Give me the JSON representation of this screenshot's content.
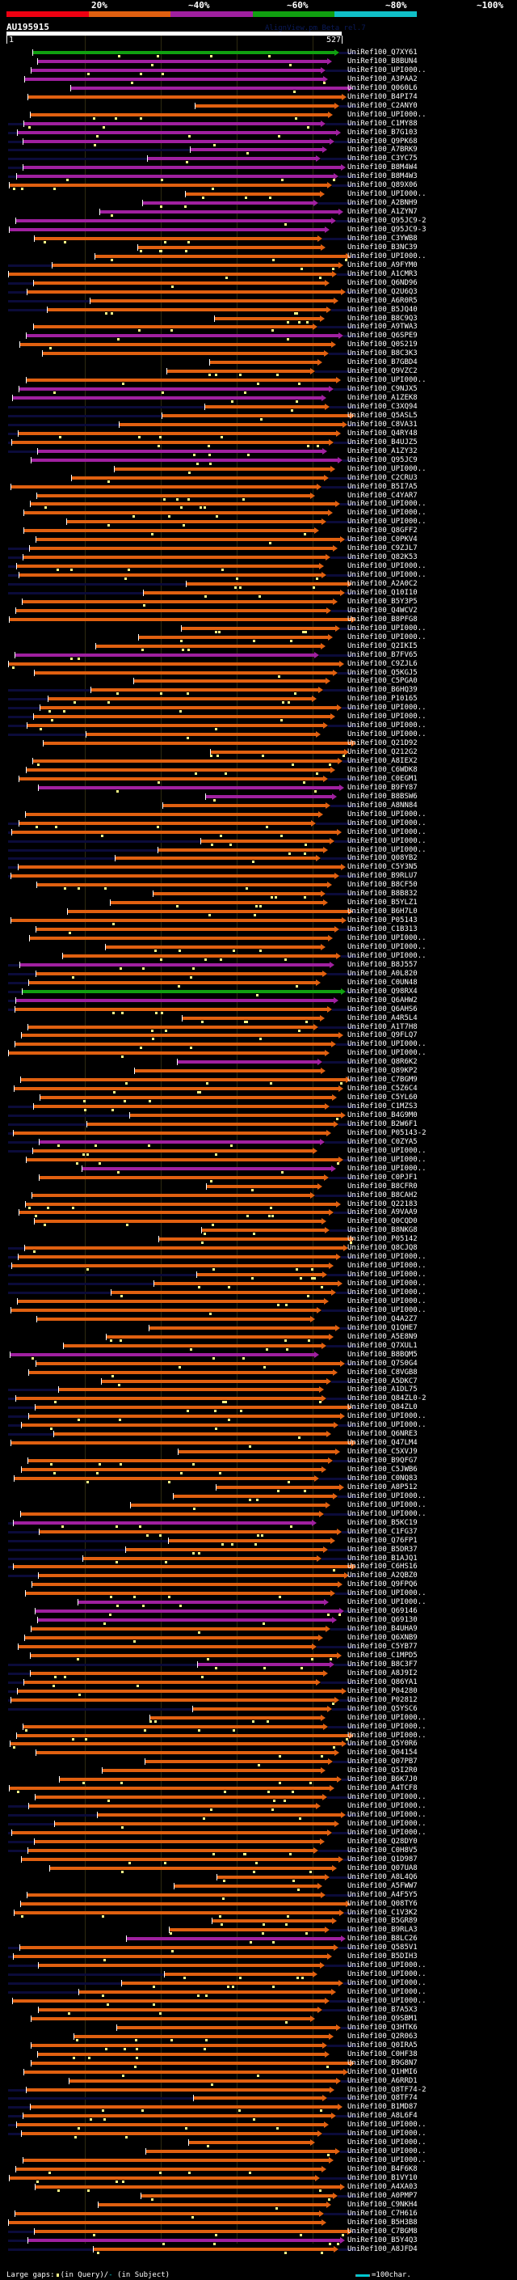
{
  "coverage_legend": {
    "labels": [
      "20%",
      "~40%",
      "~60%",
      "~80%",
      "~100%"
    ],
    "colors": [
      "#ee0011",
      "#e06010",
      "#a020a0",
      "#10a010",
      "#10c0c8"
    ]
  },
  "query": {
    "name": "AU195915",
    "start": "1",
    "end": "527",
    "length": 527
  },
  "watermark": "AlignView.pm Beta rel.7",
  "hit_colors": {
    "orange": "#e06010",
    "purple": "#a020a0",
    "green": "#10a010"
  },
  "hits": [
    {
      "label": "UniRef100_Q7XY61",
      "c": "green"
    },
    {
      "label": "UniRef100_B8BUN4",
      "c": "purple"
    },
    {
      "label": "UniRef100_UPI000..",
      "c": "purple"
    },
    {
      "label": "UniRef100_A3PAA2",
      "c": "purple"
    },
    {
      "label": "UniRef100_Q060L6",
      "c": "purple"
    },
    {
      "label": "UniRef100_B4PI74",
      "c": "orange"
    },
    {
      "label": "UniRef100_C2ANY0",
      "c": "orange"
    },
    {
      "label": "UniRef100_UPI000..",
      "c": "orange"
    },
    {
      "label": "UniRef100_C1MY88",
      "c": "purple"
    },
    {
      "label": "UniRef100_B7G103",
      "c": "purple"
    },
    {
      "label": "UniRef100_Q9PK68",
      "c": "purple"
    },
    {
      "label": "UniRef100_A7BRK9",
      "c": "purple"
    },
    {
      "label": "UniRef100_C3YC75",
      "c": "purple"
    },
    {
      "label": "UniRef100_B8M4W4",
      "c": "purple"
    },
    {
      "label": "UniRef100_B8M4W3",
      "c": "purple"
    },
    {
      "label": "UniRef100_Q89X06",
      "c": "orange"
    },
    {
      "label": "UniRef100_UPI000..",
      "c": "orange"
    },
    {
      "label": "UniRef100_A2BNH9",
      "c": "purple"
    },
    {
      "label": "UniRef100_A1ZYN7",
      "c": "purple"
    },
    {
      "label": "UniRef100_Q95JC9-2",
      "c": "purple"
    },
    {
      "label": "UniRef100_Q95JC9-3",
      "c": "purple"
    },
    {
      "label": "UniRef100_C3YWB8",
      "c": "orange"
    },
    {
      "label": "UniRef100_B3NC39",
      "c": "orange"
    },
    {
      "label": "UniRef100_UPI000..",
      "c": "orange"
    },
    {
      "label": "UniRef100_A9FYM0",
      "c": "orange"
    },
    {
      "label": "UniRef100_A1CMR3",
      "c": "orange"
    },
    {
      "label": "UniRef100_Q6ND96",
      "c": "orange"
    },
    {
      "label": "UniRef100_Q2U6Q3",
      "c": "orange"
    },
    {
      "label": "UniRef100_A6R0R5",
      "c": "orange"
    },
    {
      "label": "UniRef100_B5JQ40",
      "c": "orange"
    },
    {
      "label": "UniRef100_B8C9Q3",
      "c": "orange"
    },
    {
      "label": "UniRef100_A9TWA3",
      "c": "orange"
    },
    {
      "label": "UniRef100_Q6SPE9",
      "c": "purple"
    },
    {
      "label": "UniRef100_Q0S219",
      "c": "orange"
    },
    {
      "label": "UniRef100_B8C3K3",
      "c": "orange"
    },
    {
      "label": "UniRef100_B7GBD4",
      "c": "orange"
    },
    {
      "label": "UniRef100_Q9VZC2",
      "c": "orange"
    },
    {
      "label": "UniRef100_UPI000..",
      "c": "orange"
    },
    {
      "label": "UniRef100_C9NJX5",
      "c": "purple"
    },
    {
      "label": "UniRef100_A1ZEK8",
      "c": "purple"
    },
    {
      "label": "UniRef100_C3XQ94",
      "c": "orange"
    },
    {
      "label": "UniRef100_Q5ASL5",
      "c": "orange"
    },
    {
      "label": "UniRef100_C8VA31",
      "c": "orange"
    },
    {
      "label": "UniRef100_Q4RY48",
      "c": "orange"
    },
    {
      "label": "UniRef100_B4UJZ5",
      "c": "orange"
    },
    {
      "label": "UniRef100_A1ZY32",
      "c": "purple"
    },
    {
      "label": "UniRef100_Q95JC9",
      "c": "purple"
    },
    {
      "label": "UniRef100_UPI000..",
      "c": "orange"
    },
    {
      "label": "UniRef100_C2CRU3",
      "c": "orange"
    },
    {
      "label": "UniRef100_B5I7A5",
      "c": "orange"
    },
    {
      "label": "UniRef100_C4YAR7",
      "c": "orange"
    },
    {
      "label": "UniRef100_UPI000..",
      "c": "orange"
    },
    {
      "label": "UniRef100_UPI000..",
      "c": "orange"
    },
    {
      "label": "UniRef100_UPI000..",
      "c": "orange"
    },
    {
      "label": "UniRef100_Q8GFF2",
      "c": "orange"
    },
    {
      "label": "UniRef100_C0PKV4",
      "c": "orange"
    },
    {
      "label": "UniRef100_C9ZJL7",
      "c": "orange"
    },
    {
      "label": "UniRef100_Q82K53",
      "c": "orange"
    },
    {
      "label": "UniRef100_UPI000..",
      "c": "orange"
    },
    {
      "label": "UniRef100_UPI000..",
      "c": "orange"
    },
    {
      "label": "UniRef100_A2A0C2",
      "c": "orange"
    },
    {
      "label": "UniRef100_Q10I10",
      "c": "orange"
    },
    {
      "label": "UniRef100_B5Y3P5",
      "c": "orange"
    },
    {
      "label": "UniRef100_Q4WCV2",
      "c": "orange"
    },
    {
      "label": "UniRef100_B8PFG8",
      "c": "orange"
    },
    {
      "label": "UniRef100_UPI000..",
      "c": "orange"
    },
    {
      "label": "UniRef100_UPI000..",
      "c": "orange"
    },
    {
      "label": "UniRef100_Q2IKI5",
      "c": "orange"
    },
    {
      "label": "UniRef100_B7FV65",
      "c": "purple"
    },
    {
      "label": "UniRef100_C9ZJL6",
      "c": "orange"
    },
    {
      "label": "UniRef100_Q5KGJ5",
      "c": "orange"
    },
    {
      "label": "UniRef100_C5PGA0",
      "c": "orange"
    },
    {
      "label": "UniRef100_B6HQ39",
      "c": "orange"
    },
    {
      "label": "UniRef100_P10165",
      "c": "orange"
    },
    {
      "label": "UniRef100_UPI000..",
      "c": "orange"
    },
    {
      "label": "UniRef100_UPI000..",
      "c": "orange"
    },
    {
      "label": "UniRef100_UPI000..",
      "c": "orange"
    },
    {
      "label": "UniRef100_UPI000..",
      "c": "orange"
    },
    {
      "label": "UniRef100_Q21D92",
      "c": "orange"
    },
    {
      "label": "UniRef100_Q212G2",
      "c": "orange"
    },
    {
      "label": "UniRef100_A8IEX2",
      "c": "orange"
    },
    {
      "label": "UniRef100_C6WDK8",
      "c": "orange"
    },
    {
      "label": "UniRef100_C0EGM1",
      "c": "orange"
    },
    {
      "label": "UniRef100_B9FY87",
      "c": "purple"
    },
    {
      "label": "UniRef100_B8BSW6",
      "c": "purple"
    },
    {
      "label": "UniRef100_A8NN84",
      "c": "orange"
    },
    {
      "label": "UniRef100_UPI000..",
      "c": "orange"
    },
    {
      "label": "UniRef100_UPI000..",
      "c": "orange"
    },
    {
      "label": "UniRef100_UPI000..",
      "c": "orange"
    },
    {
      "label": "UniRef100_UPI000..",
      "c": "orange"
    },
    {
      "label": "UniRef100_UPI000..",
      "c": "orange"
    },
    {
      "label": "UniRef100_Q08YB2",
      "c": "orange"
    },
    {
      "label": "UniRef100_C5Y3N5",
      "c": "orange"
    },
    {
      "label": "UniRef100_B9RLU7",
      "c": "orange"
    },
    {
      "label": "UniRef100_B8CF50",
      "c": "orange"
    },
    {
      "label": "UniRef100_B8B832",
      "c": "orange"
    },
    {
      "label": "UniRef100_B5YLZ1",
      "c": "orange"
    },
    {
      "label": "UniRef100_B6H7L0",
      "c": "orange"
    },
    {
      "label": "UniRef100_P05143",
      "c": "orange"
    },
    {
      "label": "UniRef100_C1B313",
      "c": "orange"
    },
    {
      "label": "UniRef100_UPI000..",
      "c": "orange"
    },
    {
      "label": "UniRef100_UPI000..",
      "c": "orange"
    },
    {
      "label": "UniRef100_UPI000..",
      "c": "orange"
    },
    {
      "label": "UniRef100_B8J557",
      "c": "purple"
    },
    {
      "label": "UniRef100_A0L820",
      "c": "orange"
    },
    {
      "label": "UniRef100_C0UN48",
      "c": "orange"
    },
    {
      "label": "UniRef100_Q98RX4",
      "c": "green"
    },
    {
      "label": "UniRef100_Q6AHW2",
      "c": "purple"
    },
    {
      "label": "UniRef100_Q6AHS6",
      "c": "orange"
    },
    {
      "label": "UniRef100_A4R5L4",
      "c": "orange"
    },
    {
      "label": "UniRef100_A1T7H8",
      "c": "orange"
    },
    {
      "label": "UniRef100_Q9FLQ7",
      "c": "orange"
    },
    {
      "label": "UniRef100_UPI000..",
      "c": "orange"
    },
    {
      "label": "UniRef100_UPI000..",
      "c": "orange"
    },
    {
      "label": "UniRef100_Q8R6K2",
      "c": "purple"
    },
    {
      "label": "UniRef100_Q89KP2",
      "c": "orange"
    },
    {
      "label": "UniRef100_C7BGM9",
      "c": "orange"
    },
    {
      "label": "UniRef100_C5Z6C4",
      "c": "orange"
    },
    {
      "label": "UniRef100_C5YL60",
      "c": "orange"
    },
    {
      "label": "UniRef100_C1MZS3",
      "c": "orange"
    },
    {
      "label": "UniRef100_B4G9M0",
      "c": "orange"
    },
    {
      "label": "UniRef100_B2W6F1",
      "c": "orange"
    },
    {
      "label": "UniRef100_P05143-2",
      "c": "orange"
    },
    {
      "label": "UniRef100_C0ZYA5",
      "c": "purple"
    },
    {
      "label": "UniRef100_UPI000..",
      "c": "orange"
    },
    {
      "label": "UniRef100_UPI000..",
      "c": "orange"
    },
    {
      "label": "UniRef100_UPI000..",
      "c": "purple"
    },
    {
      "label": "UniRef100_C0PJF1",
      "c": "orange"
    },
    {
      "label": "UniRef100_B8CFR0",
      "c": "orange"
    },
    {
      "label": "UniRef100_B8CAH2",
      "c": "orange"
    },
    {
      "label": "UniRef100_Q22183",
      "c": "orange"
    },
    {
      "label": "UniRef100_A9VAA9",
      "c": "orange"
    },
    {
      "label": "UniRef100_Q0CQD0",
      "c": "orange"
    },
    {
      "label": "UniRef100_B8NKG8",
      "c": "orange"
    },
    {
      "label": "UniRef100_P05142",
      "c": "orange"
    },
    {
      "label": "UniRef100_Q8CJQ8",
      "c": "orange"
    },
    {
      "label": "UniRef100_UPI000..",
      "c": "orange"
    },
    {
      "label": "UniRef100_UPI000..",
      "c": "orange"
    },
    {
      "label": "UniRef100_UPI000..",
      "c": "orange"
    },
    {
      "label": "UniRef100_UPI000..",
      "c": "orange"
    },
    {
      "label": "UniRef100_UPI000..",
      "c": "orange"
    },
    {
      "label": "UniRef100_UPI000..",
      "c": "orange"
    },
    {
      "label": "UniRef100_UPI000..",
      "c": "orange"
    },
    {
      "label": "UniRef100_Q4A2Z7",
      "c": "orange"
    },
    {
      "label": "UniRef100_Q1QHE7",
      "c": "orange"
    },
    {
      "label": "UniRef100_A5E8N9",
      "c": "orange"
    },
    {
      "label": "UniRef100_Q7XUL1",
      "c": "orange"
    },
    {
      "label": "UniRef100_B8BQM5",
      "c": "purple"
    },
    {
      "label": "UniRef100_Q7S0G4",
      "c": "orange"
    },
    {
      "label": "UniRef100_C8VGB8",
      "c": "orange"
    },
    {
      "label": "UniRef100_A5DKC7",
      "c": "orange"
    },
    {
      "label": "UniRef100_A1DL75",
      "c": "orange"
    },
    {
      "label": "UniRef100_Q84ZL0-2",
      "c": "orange"
    },
    {
      "label": "UniRef100_Q84ZL0",
      "c": "orange"
    },
    {
      "label": "UniRef100_UPI000..",
      "c": "orange"
    },
    {
      "label": "UniRef100_UPI000..",
      "c": "orange"
    },
    {
      "label": "UniRef100_Q6NRE3",
      "c": "orange"
    },
    {
      "label": "UniRef100_Q47LM4",
      "c": "orange"
    },
    {
      "label": "UniRef100_C5XVJ9",
      "c": "orange"
    },
    {
      "label": "UniRef100_B9QFG7",
      "c": "orange"
    },
    {
      "label": "UniRef100_C5JWB6",
      "c": "orange"
    },
    {
      "label": "UniRef100_C0NQ83",
      "c": "orange"
    },
    {
      "label": "UniRef100_A8P512",
      "c": "orange"
    },
    {
      "label": "UniRef100_UPI000..",
      "c": "orange"
    },
    {
      "label": "UniRef100_UPI000..",
      "c": "orange"
    },
    {
      "label": "UniRef100_UPI000..",
      "c": "orange"
    },
    {
      "label": "UniRef100_B5KC19",
      "c": "purple"
    },
    {
      "label": "UniRef100_C1FG37",
      "c": "orange"
    },
    {
      "label": "UniRef100_Q76FP1",
      "c": "orange"
    },
    {
      "label": "UniRef100_B5DR37",
      "c": "orange"
    },
    {
      "label": "UniRef100_B1AJQ1",
      "c": "orange"
    },
    {
      "label": "UniRef100_C6HS16",
      "c": "orange"
    },
    {
      "label": "UniRef100_A2QBZ0",
      "c": "orange"
    },
    {
      "label": "UniRef100_Q9FPQ6",
      "c": "orange"
    },
    {
      "label": "UniRef100_UPI000..",
      "c": "orange"
    },
    {
      "label": "UniRef100_UPI000..",
      "c": "purple"
    },
    {
      "label": "UniRef100_Q69146",
      "c": "purple"
    },
    {
      "label": "UniRef100_Q69130",
      "c": "purple"
    },
    {
      "label": "UniRef100_B4UHA9",
      "c": "orange"
    },
    {
      "label": "UniRef100_Q6XNB9",
      "c": "orange"
    },
    {
      "label": "UniRef100_C5YB77",
      "c": "orange"
    },
    {
      "label": "UniRef100_C1MPD5",
      "c": "orange"
    },
    {
      "label": "UniRef100_B8C3F7",
      "c": "purple"
    },
    {
      "label": "UniRef100_A8J9I2",
      "c": "orange"
    },
    {
      "label": "UniRef100_Q86YA1",
      "c": "orange"
    },
    {
      "label": "UniRef100_P04280",
      "c": "orange"
    },
    {
      "label": "UniRef100_P02812",
      "c": "orange"
    },
    {
      "label": "UniRef100_Q5YSC6",
      "c": "orange"
    },
    {
      "label": "UniRef100_UPI000..",
      "c": "orange"
    },
    {
      "label": "UniRef100_UPI000..",
      "c": "orange"
    },
    {
      "label": "UniRef100_UPI000..",
      "c": "orange"
    },
    {
      "label": "UniRef100_Q5Y0R6",
      "c": "orange"
    },
    {
      "label": "UniRef100_Q04154",
      "c": "orange"
    },
    {
      "label": "UniRef100_Q07PB7",
      "c": "orange"
    },
    {
      "label": "UniRef100_Q5I2R0",
      "c": "orange"
    },
    {
      "label": "UniRef100_B6K7J0",
      "c": "orange"
    },
    {
      "label": "UniRef100_A4TCF8",
      "c": "orange"
    },
    {
      "label": "UniRef100_UPI000..",
      "c": "orange"
    },
    {
      "label": "UniRef100_UPI000..",
      "c": "orange"
    },
    {
      "label": "UniRef100_UPI000..",
      "c": "orange"
    },
    {
      "label": "UniRef100_UPI000..",
      "c": "orange"
    },
    {
      "label": "UniRef100_UPI000..",
      "c": "orange"
    },
    {
      "label": "UniRef100_Q28DY0",
      "c": "orange"
    },
    {
      "label": "UniRef100_C0H8V5",
      "c": "orange"
    },
    {
      "label": "UniRef100_Q1D987",
      "c": "orange"
    },
    {
      "label": "UniRef100_Q07UA8",
      "c": "orange"
    },
    {
      "label": "UniRef100_A8L4Q6",
      "c": "orange"
    },
    {
      "label": "UniRef100_A5FWW7",
      "c": "orange"
    },
    {
      "label": "UniRef100_A4F5Y5",
      "c": "orange"
    },
    {
      "label": "UniRef100_Q08TY6",
      "c": "orange"
    },
    {
      "label": "UniRef100_C1V3K2",
      "c": "orange"
    },
    {
      "label": "UniRef100_B5GR89",
      "c": "orange"
    },
    {
      "label": "UniRef100_B9RLA3",
      "c": "orange"
    },
    {
      "label": "UniRef100_B8LC26",
      "c": "purple"
    },
    {
      "label": "UniRef100_Q585V1",
      "c": "orange"
    },
    {
      "label": "UniRef100_B5DIH3",
      "c": "orange"
    },
    {
      "label": "UniRef100_UPI000..",
      "c": "orange"
    },
    {
      "label": "UniRef100_UPI000..",
      "c": "orange"
    },
    {
      "label": "UniRef100_UPI000..",
      "c": "orange"
    },
    {
      "label": "UniRef100_UPI000..",
      "c": "orange"
    },
    {
      "label": "UniRef100_UPI000..",
      "c": "orange"
    },
    {
      "label": "UniRef100_B7A5X3",
      "c": "orange"
    },
    {
      "label": "UniRef100_Q9SBM1",
      "c": "orange"
    },
    {
      "label": "UniRef100_Q3HTK6",
      "c": "orange"
    },
    {
      "label": "UniRef100_Q2R063",
      "c": "orange"
    },
    {
      "label": "UniRef100_Q0IRA5",
      "c": "orange"
    },
    {
      "label": "UniRef100_C0HF38",
      "c": "orange"
    },
    {
      "label": "UniRef100_B9G8N7",
      "c": "orange"
    },
    {
      "label": "UniRef100_Q1HMI6",
      "c": "orange"
    },
    {
      "label": "UniRef100_A6RRD1",
      "c": "orange"
    },
    {
      "label": "UniRef100_Q8TF74-2",
      "c": "orange"
    },
    {
      "label": "UniRef100_Q8TF74",
      "c": "orange"
    },
    {
      "label": "UniRef100_B1MD87",
      "c": "orange"
    },
    {
      "label": "UniRef100_A8L6F4",
      "c": "orange"
    },
    {
      "label": "UniRef100_UPI000..",
      "c": "orange"
    },
    {
      "label": "UniRef100_UPI000..",
      "c": "orange"
    },
    {
      "label": "UniRef100_UPI000..",
      "c": "orange"
    },
    {
      "label": "UniRef100_UPI000..",
      "c": "orange"
    },
    {
      "label": "UniRef100_UPI000..",
      "c": "orange"
    },
    {
      "label": "UniRef100_B4F6K8",
      "c": "orange"
    },
    {
      "label": "UniRef100_B1VY10",
      "c": "orange"
    },
    {
      "label": "UniRef100_A4XA03",
      "c": "orange"
    },
    {
      "label": "UniRef100_A0PMP7",
      "c": "orange"
    },
    {
      "label": "UniRef100_C9NKH4",
      "c": "orange"
    },
    {
      "label": "UniRef100_C7H616",
      "c": "orange"
    },
    {
      "label": "UniRef100_B5H3B8",
      "c": "orange"
    },
    {
      "label": "UniRef100_C7BGM8",
      "c": "orange"
    },
    {
      "label": "UniRef100_B5Y4Q3",
      "c": "purple"
    },
    {
      "label": "UniRef100_A8JFD4",
      "c": "orange"
    }
  ],
  "footer": {
    "large_gaps_label": "Large gaps:",
    "in_query": "(in Query)/",
    "subject_mark": "-",
    "in_subject": " (in Subject)",
    "scale_label": "=100char."
  }
}
